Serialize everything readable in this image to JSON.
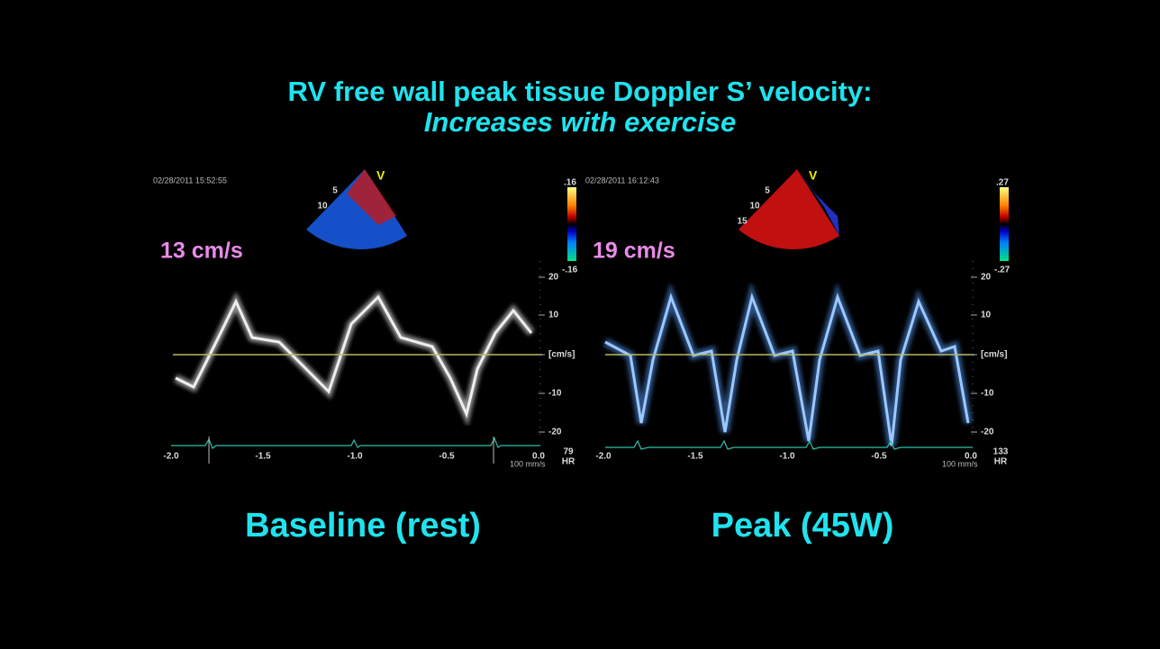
{
  "title": {
    "line1": "RV free wall peak tissue Doppler S’ velocity:",
    "line2": "Increases with exercise"
  },
  "panels": [
    {
      "timestamp": "02/28/2011 15:52:55",
      "velocity": "13 cm/s",
      "scale_max": ".16",
      "scale_min": "-.16",
      "y_labels": [
        "20",
        "10",
        "[cm/s]",
        "-10",
        "-20"
      ],
      "x_labels": [
        "-2.0",
        "-1.5",
        "-1.0",
        "-0.5",
        "0.0"
      ],
      "sweep": "100 mm/s",
      "hr": "79",
      "hr_label": "HR",
      "depths": [
        "5",
        "10"
      ],
      "view": "V",
      "caption": "Baseline (rest)"
    },
    {
      "timestamp": "02/28/2011 16:12:43",
      "velocity": "19 cm/s",
      "scale_max": ".27",
      "scale_min": "-.27",
      "y_labels": [
        "20",
        "10",
        "[cm/s]",
        "-10",
        "-20"
      ],
      "x_labels": [
        "-2.0",
        "-1.5",
        "-1.0",
        "-0.5",
        "0.0"
      ],
      "sweep": "100 mm/s",
      "hr": "133",
      "hr_label": "HR",
      "depths": [
        "5",
        "10",
        "15"
      ],
      "view": "V",
      "caption": "Peak (45W)"
    }
  ]
}
